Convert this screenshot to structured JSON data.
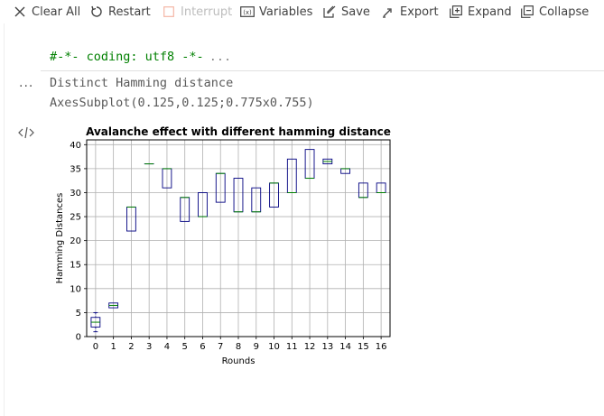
{
  "toolbar": {
    "clear_all": "Clear All",
    "restart": "Restart",
    "interrupt": "Interrupt",
    "variables": "Variables",
    "save": "Save",
    "export": "Export",
    "expand": "Expand",
    "collapse": "Collapse"
  },
  "input_cell": {
    "code": "#-*- coding: utf8 -*-",
    "ellipsis": "..."
  },
  "output": {
    "prompt": "...",
    "line1": "Distinct Hamming distance",
    "line2": "AxesSubplot(0.125,0.125;0.775x0.755)"
  },
  "colors": {
    "box": "#000080",
    "median": "#008000",
    "grid": "#b0b0b0",
    "code": "#008000"
  },
  "chart_data": {
    "type": "box",
    "title": "Avalanche effect with different hamming distance",
    "xlabel": "Rounds",
    "ylabel": "Hamming Distances",
    "ylim": [
      0,
      41
    ],
    "yticks": [
      0,
      5,
      10,
      15,
      20,
      25,
      30,
      35,
      40
    ],
    "grid": true,
    "categories": [
      "0",
      "1",
      "2",
      "3",
      "4",
      "5",
      "6",
      "7",
      "8",
      "9",
      "10",
      "11",
      "12",
      "13",
      "14",
      "15",
      "16"
    ],
    "boxes": [
      {
        "q1": 2,
        "median": 3,
        "q3": 4,
        "whisker_low": 1,
        "whisker_high": 5
      },
      {
        "q1": 6,
        "median": 6.5,
        "q3": 7,
        "whisker_low": 6,
        "whisker_high": 7
      },
      {
        "q1": 22,
        "median": 27,
        "q3": 27,
        "whisker_low": 22,
        "whisker_high": 27
      },
      {
        "q1": 36,
        "median": 36,
        "q3": 36,
        "whisker_low": 36,
        "whisker_high": 36
      },
      {
        "q1": 31,
        "median": 35,
        "q3": 35,
        "whisker_low": 31,
        "whisker_high": 35
      },
      {
        "q1": 24,
        "median": 29,
        "q3": 29,
        "whisker_low": 24,
        "whisker_high": 29
      },
      {
        "q1": 25,
        "median": 25,
        "q3": 30,
        "whisker_low": 25,
        "whisker_high": 30
      },
      {
        "q1": 28,
        "median": 34,
        "q3": 34,
        "whisker_low": 28,
        "whisker_high": 34
      },
      {
        "q1": 26,
        "median": 26,
        "q3": 33,
        "whisker_low": 26,
        "whisker_high": 33
      },
      {
        "q1": 26,
        "median": 26,
        "q3": 31,
        "whisker_low": 26,
        "whisker_high": 31
      },
      {
        "q1": 27,
        "median": 32,
        "q3": 32,
        "whisker_low": 27,
        "whisker_high": 32
      },
      {
        "q1": 30,
        "median": 30,
        "q3": 37,
        "whisker_low": 30,
        "whisker_high": 37
      },
      {
        "q1": 33,
        "median": 33,
        "q3": 39,
        "whisker_low": 33,
        "whisker_high": 39
      },
      {
        "q1": 36,
        "median": 36.5,
        "q3": 37,
        "whisker_low": 36,
        "whisker_high": 37
      },
      {
        "q1": 34,
        "median": 35,
        "q3": 35,
        "whisker_low": 34,
        "whisker_high": 35
      },
      {
        "q1": 29,
        "median": 29,
        "q3": 32,
        "whisker_low": 29,
        "whisker_high": 32
      },
      {
        "q1": 30,
        "median": 30,
        "q3": 32,
        "whisker_low": 30,
        "whisker_high": 32
      }
    ]
  }
}
